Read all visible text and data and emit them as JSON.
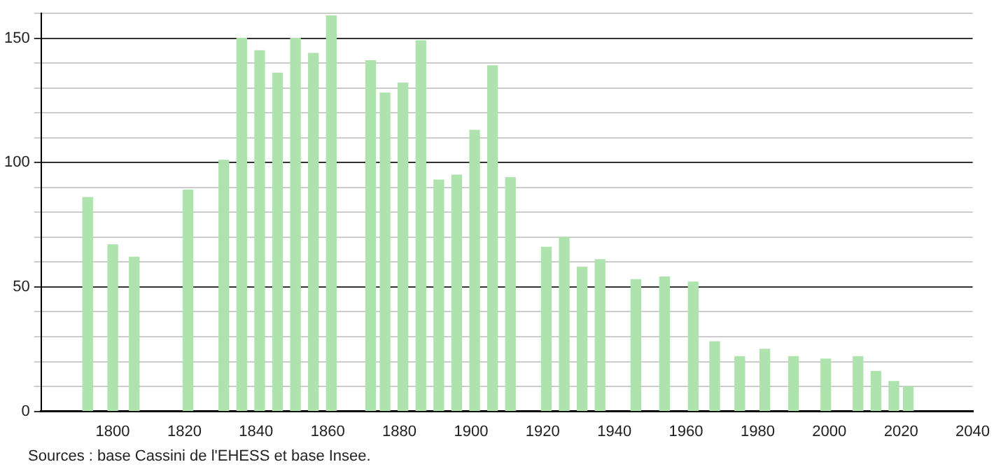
{
  "chart_data": {
    "type": "bar",
    "color": "#aee3ae",
    "x": [
      1793,
      1800,
      1806,
      1821,
      1831,
      1836,
      1841,
      1846,
      1851,
      1856,
      1861,
      1872,
      1876,
      1881,
      1886,
      1891,
      1896,
      1901,
      1906,
      1911,
      1921,
      1926,
      1931,
      1936,
      1946,
      1954,
      1962,
      1968,
      1975,
      1982,
      1990,
      1999,
      2008,
      2013,
      2018,
      2022
    ],
    "values": [
      86,
      67,
      62,
      89,
      101,
      150,
      145,
      136,
      150,
      144,
      159,
      141,
      128,
      132,
      149,
      93,
      95,
      113,
      139,
      94,
      66,
      70,
      58,
      61,
      53,
      54,
      52,
      28,
      22,
      25,
      22,
      21,
      22,
      16,
      12,
      10
    ],
    "xlim": [
      1780,
      2040
    ],
    "xticks": [
      1800,
      1820,
      1840,
      1860,
      1880,
      1900,
      1920,
      1940,
      1960,
      1980,
      2000,
      2020,
      2040
    ],
    "ylim": [
      0,
      160
    ],
    "yticks": [
      0,
      {
        "value": 10,
        "label": null
      },
      {
        "value": 20,
        "label": null
      },
      {
        "value": 30,
        "label": null
      },
      {
        "value": 40,
        "label": null
      },
      50,
      {
        "value": 60,
        "label": null
      },
      {
        "value": 70,
        "label": null
      },
      {
        "value": 80,
        "label": null
      },
      {
        "value": 90,
        "label": null
      },
      100,
      {
        "value": 110,
        "label": null
      },
      {
        "value": 120,
        "label": null
      },
      {
        "value": 130,
        "label": null
      },
      {
        "value": 140,
        "label": null
      },
      150,
      {
        "value": 160,
        "label": null
      }
    ],
    "grid": "y",
    "legend": false,
    "annotations": [
      "Sources : base Cassini de l'EHESS et base Insee."
    ]
  }
}
